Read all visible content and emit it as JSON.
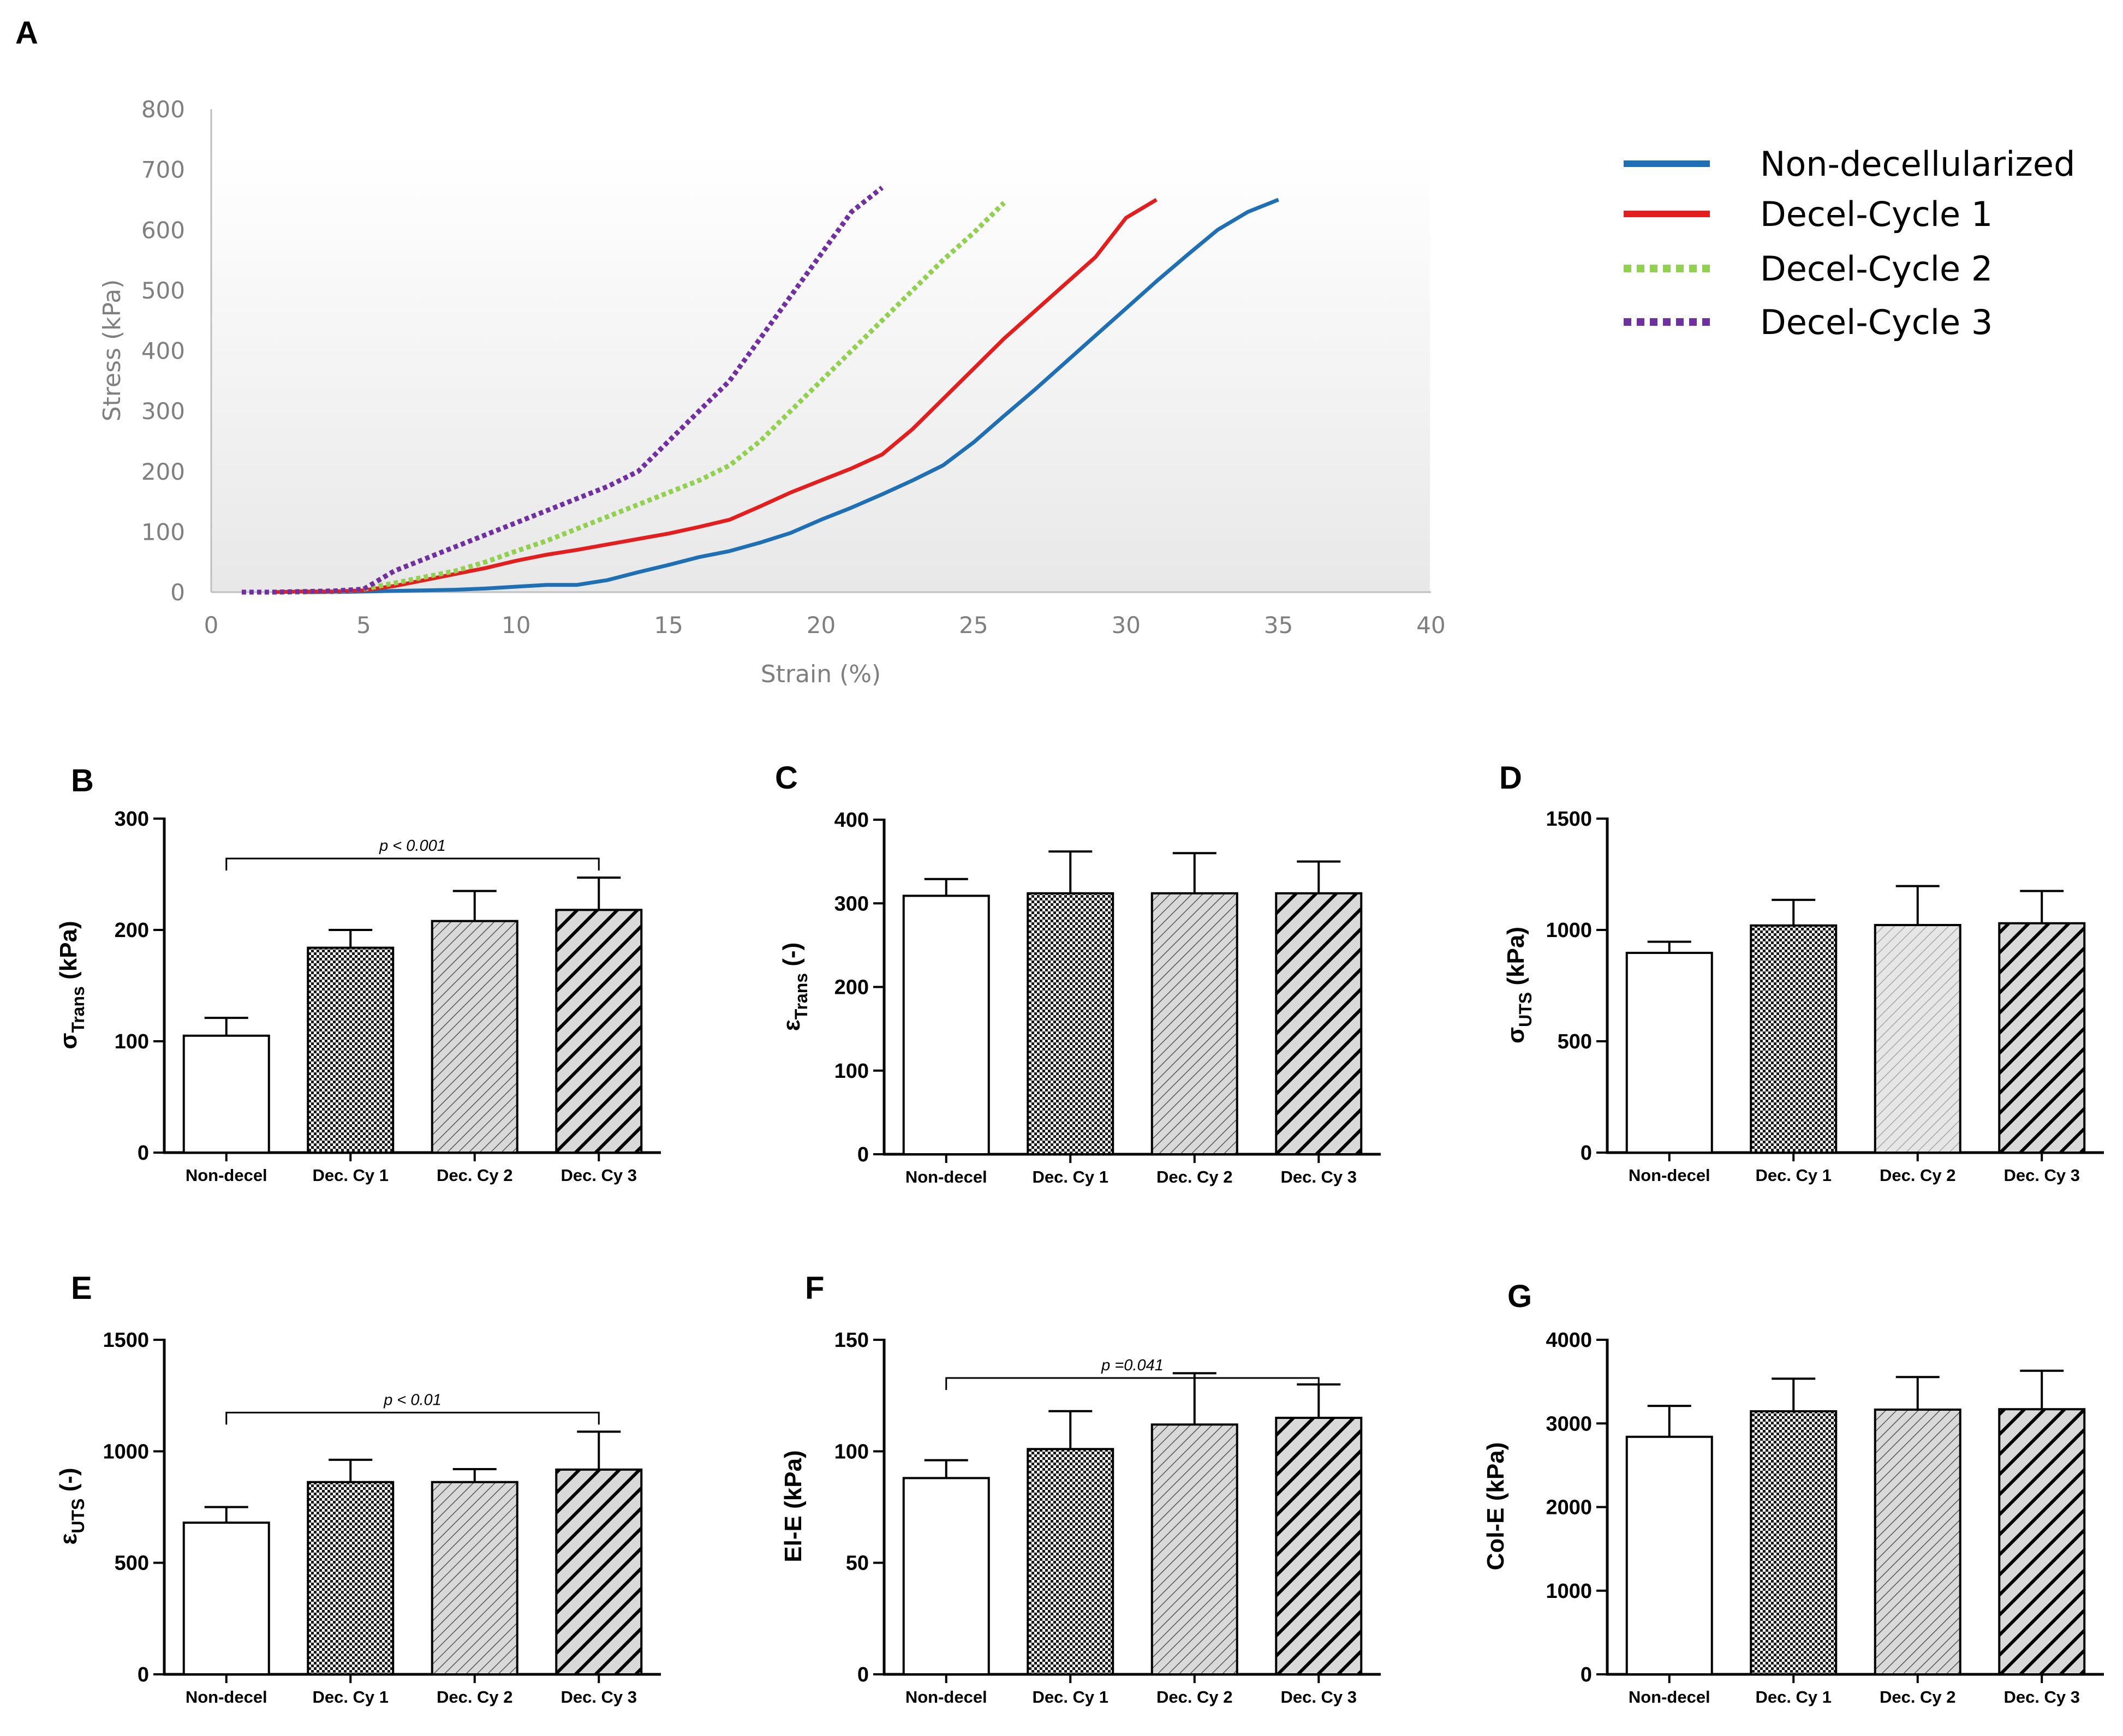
{
  "figure": {
    "panel_letters": [
      "A",
      "B",
      "C",
      "D",
      "E",
      "F",
      "G"
    ]
  },
  "chart_data": [
    {
      "id": "A",
      "type": "line",
      "title": "",
      "xlabel": "Strain (%)",
      "ylabel": "Stress (kPa)",
      "xlim": [
        0,
        40
      ],
      "ylim": [
        0,
        800
      ],
      "xticks": [
        0,
        5,
        10,
        15,
        20,
        25,
        30,
        35,
        40
      ],
      "yticks": [
        0,
        100,
        200,
        300,
        400,
        500,
        600,
        700,
        800
      ],
      "grid": false,
      "legend_position": "right",
      "series": [
        {
          "name": "Non-decellularized",
          "color": "#1f6fb4",
          "style": "solid",
          "x": [
            3,
            4,
            5,
            6,
            7,
            8,
            9,
            10,
            11,
            12,
            13,
            14,
            15,
            16,
            17,
            18,
            19,
            20,
            21,
            22,
            23,
            24,
            25,
            26,
            27,
            28,
            29,
            30,
            31,
            32,
            33,
            34,
            35
          ],
          "y": [
            0,
            0,
            1,
            2,
            3,
            4,
            6,
            9,
            12,
            12,
            20,
            33,
            45,
            58,
            68,
            82,
            98,
            120,
            140,
            162,
            185,
            210,
            248,
            292,
            335,
            380,
            425,
            470,
            515,
            558,
            600,
            630,
            650
          ]
        },
        {
          "name": "Decel-Cycle 1",
          "color": "#e31e1e",
          "style": "solid",
          "x": [
            2,
            3,
            4,
            5,
            6,
            7,
            8,
            9,
            10,
            11,
            12,
            13,
            14,
            15,
            16,
            17,
            18,
            19,
            20,
            21,
            22,
            23,
            24,
            25,
            26,
            27,
            28,
            29,
            30,
            31
          ],
          "y": [
            0,
            1,
            1,
            3,
            10,
            20,
            30,
            40,
            52,
            62,
            70,
            79,
            88,
            97,
            108,
            120,
            142,
            165,
            185,
            205,
            228,
            270,
            320,
            370,
            420,
            465,
            510,
            555,
            620,
            650
          ]
        },
        {
          "name": "Decel-Cycle 2",
          "color": "#92d050",
          "style": "dotted",
          "x": [
            2,
            3,
            4,
            5,
            6,
            7,
            8,
            9,
            10,
            11,
            12,
            13,
            14,
            15,
            16,
            17,
            18,
            19,
            20,
            21,
            22,
            23,
            24,
            25,
            26
          ],
          "y": [
            0,
            0,
            1,
            5,
            15,
            25,
            35,
            50,
            68,
            85,
            105,
            125,
            145,
            165,
            185,
            210,
            250,
            300,
            350,
            400,
            450,
            500,
            550,
            595,
            645
          ]
        },
        {
          "name": "Decel-Cycle 3",
          "color": "#7030a0",
          "style": "dotted",
          "x": [
            1,
            2,
            3,
            4,
            5,
            6,
            7,
            8,
            9,
            10,
            11,
            12,
            13,
            14,
            15,
            16,
            17,
            18,
            19,
            20,
            21,
            22
          ],
          "y": [
            0,
            0,
            1,
            2,
            5,
            35,
            55,
            75,
            95,
            115,
            135,
            155,
            175,
            200,
            250,
            300,
            350,
            420,
            490,
            560,
            630,
            670
          ]
        }
      ]
    },
    {
      "id": "B",
      "type": "bar",
      "ylabel_main": "σ",
      "ylabel_sub": "Trans",
      "ylabel_unit": " (kPa)",
      "categories": [
        "Non-decel",
        "Dec. Cy 1",
        "Dec. Cy 2",
        "Dec. Cy 3"
      ],
      "values": [
        105,
        184,
        208,
        218
      ],
      "errors": [
        16,
        16,
        27,
        29
      ],
      "ylim": [
        0,
        300
      ],
      "yticks": [
        0,
        100,
        200,
        300
      ],
      "significance": {
        "from": 0,
        "to": 3,
        "label": "p < 0.001"
      }
    },
    {
      "id": "C",
      "type": "bar",
      "ylabel_main": "ε",
      "ylabel_sub": "Trans",
      "ylabel_unit": " (-)",
      "categories": [
        "Non-decel",
        "Dec. Cy 1",
        "Dec. Cy 2",
        "Dec. Cy 3"
      ],
      "values": [
        309,
        312,
        312,
        312
      ],
      "errors": [
        20,
        50,
        48,
        38
      ],
      "ylim": [
        0,
        400
      ],
      "yticks": [
        0,
        100,
        200,
        300,
        400
      ],
      "significance": null
    },
    {
      "id": "D",
      "type": "bar",
      "ylabel_main": "σ",
      "ylabel_sub": "UTS",
      "ylabel_unit": " (kPa)",
      "categories": [
        "Non-decel",
        "Dec. Cy 1",
        "Dec. Cy 2",
        "Dec. Cy 3"
      ],
      "values": [
        897,
        1020,
        1022,
        1030
      ],
      "errors": [
        50,
        115,
        175,
        145
      ],
      "ylim": [
        0,
        1500
      ],
      "yticks": [
        0,
        500,
        1000,
        1500
      ],
      "significance": null
    },
    {
      "id": "E",
      "type": "bar",
      "ylabel_main": "ε",
      "ylabel_sub": "UTS",
      "ylabel_unit": " (-)",
      "categories": [
        "Non-decel",
        "Dec. Cy 1",
        "Dec. Cy 2",
        "Dec. Cy 3"
      ],
      "values": [
        680,
        862,
        862,
        918
      ],
      "errors": [
        70,
        100,
        58,
        170
      ],
      "ylim": [
        0,
        1500
      ],
      "yticks": [
        0,
        500,
        1000,
        1500
      ],
      "significance": {
        "from": 0,
        "to": 3,
        "label": "p < 0.01"
      }
    },
    {
      "id": "F",
      "type": "bar",
      "ylabel_main": "El-E (kPa)",
      "ylabel_sub": "",
      "ylabel_unit": "",
      "categories": [
        "Non-decel",
        "Dec. Cy 1",
        "Dec. Cy 2",
        "Dec. Cy 3"
      ],
      "values": [
        88,
        101,
        112,
        115
      ],
      "errors": [
        8,
        17,
        23,
        15
      ],
      "ylim": [
        0,
        150
      ],
      "yticks": [
        0,
        50,
        100,
        150
      ],
      "significance": {
        "from": 0,
        "to": 3,
        "label": "p =0.041"
      }
    },
    {
      "id": "G",
      "type": "bar",
      "ylabel_main": "Col-E (kPa)",
      "ylabel_sub": "",
      "ylabel_unit": "",
      "categories": [
        "Non-decel",
        "Dec. Cy 1",
        "Dec. Cy 2",
        "Dec. Cy 3"
      ],
      "values": [
        2840,
        3145,
        3165,
        3170
      ],
      "errors": [
        370,
        390,
        390,
        460
      ],
      "ylim": [
        0,
        4000
      ],
      "yticks": [
        0,
        1000,
        2000,
        3000,
        4000
      ],
      "significance": null
    }
  ]
}
